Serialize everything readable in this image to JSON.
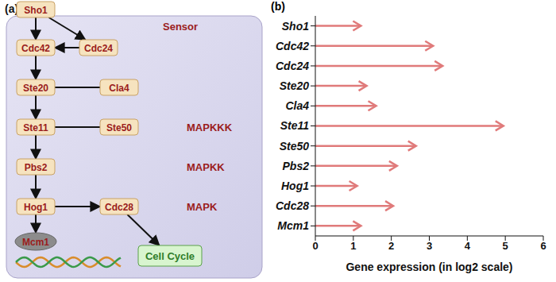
{
  "diagram": {
    "panel": "(a)",
    "title": "Sensor",
    "nodes": [
      {
        "label": "Sho1",
        "shape": "box"
      },
      {
        "label": "Cdc42",
        "shape": "box"
      },
      {
        "label": "Cdc24",
        "shape": "box"
      },
      {
        "label": "Ste20",
        "shape": "box"
      },
      {
        "label": "Cla4",
        "shape": "box"
      },
      {
        "label": "Ste11",
        "shape": "box"
      },
      {
        "label": "Ste50",
        "shape": "box"
      },
      {
        "label": "Pbs2",
        "shape": "box"
      },
      {
        "label": "Hog1",
        "shape": "box"
      },
      {
        "label": "Cdc28",
        "shape": "box"
      },
      {
        "label": "Mcm1",
        "shape": "ellipse"
      },
      {
        "label": "Cell Cycle",
        "shape": "output"
      }
    ],
    "edges": [
      {
        "from": 0,
        "to": 1,
        "style": "arrow"
      },
      {
        "from": 0,
        "to": 2,
        "style": "arrow"
      },
      {
        "from": 2,
        "to": 1,
        "style": "arrow"
      },
      {
        "from": 1,
        "to": 3,
        "style": "arrow"
      },
      {
        "from": 3,
        "to": 4,
        "style": "line"
      },
      {
        "from": 3,
        "to": 5,
        "style": "arrow"
      },
      {
        "from": 5,
        "to": 6,
        "style": "line"
      },
      {
        "from": 5,
        "to": 7,
        "style": "arrow"
      },
      {
        "from": 7,
        "to": 8,
        "style": "arrow"
      },
      {
        "from": 8,
        "to": 9,
        "style": "arrow"
      },
      {
        "from": 8,
        "to": 10,
        "style": "arrow"
      },
      {
        "from": 9,
        "to": 11,
        "style": "arrow"
      }
    ],
    "levels": [
      "MAPKKK",
      "MAPKK",
      "MAPK"
    ]
  },
  "chart_data": {
    "type": "bar",
    "orientation": "horizontal",
    "marker": "arrow",
    "annotations": [
      "(b)"
    ],
    "x_label": "Gene expression (in log2 scale)",
    "categories": [
      "Sho1",
      "Cdc42",
      "Cdc24",
      "Ste20",
      "Cla4",
      "Ste11",
      "Ste50",
      "Pbs2",
      "Hog1",
      "Cdc28",
      "Mcm1"
    ],
    "values": [
      1.2,
      3.1,
      3.35,
      1.35,
      1.6,
      4.95,
      2.65,
      2.15,
      1.1,
      2.05,
      1.2
    ],
    "color": "#e07a7a",
    "xlim": [
      0,
      6
    ],
    "xticks": [
      0,
      1,
      2,
      3,
      4,
      5,
      6
    ],
    "grid": false
  }
}
